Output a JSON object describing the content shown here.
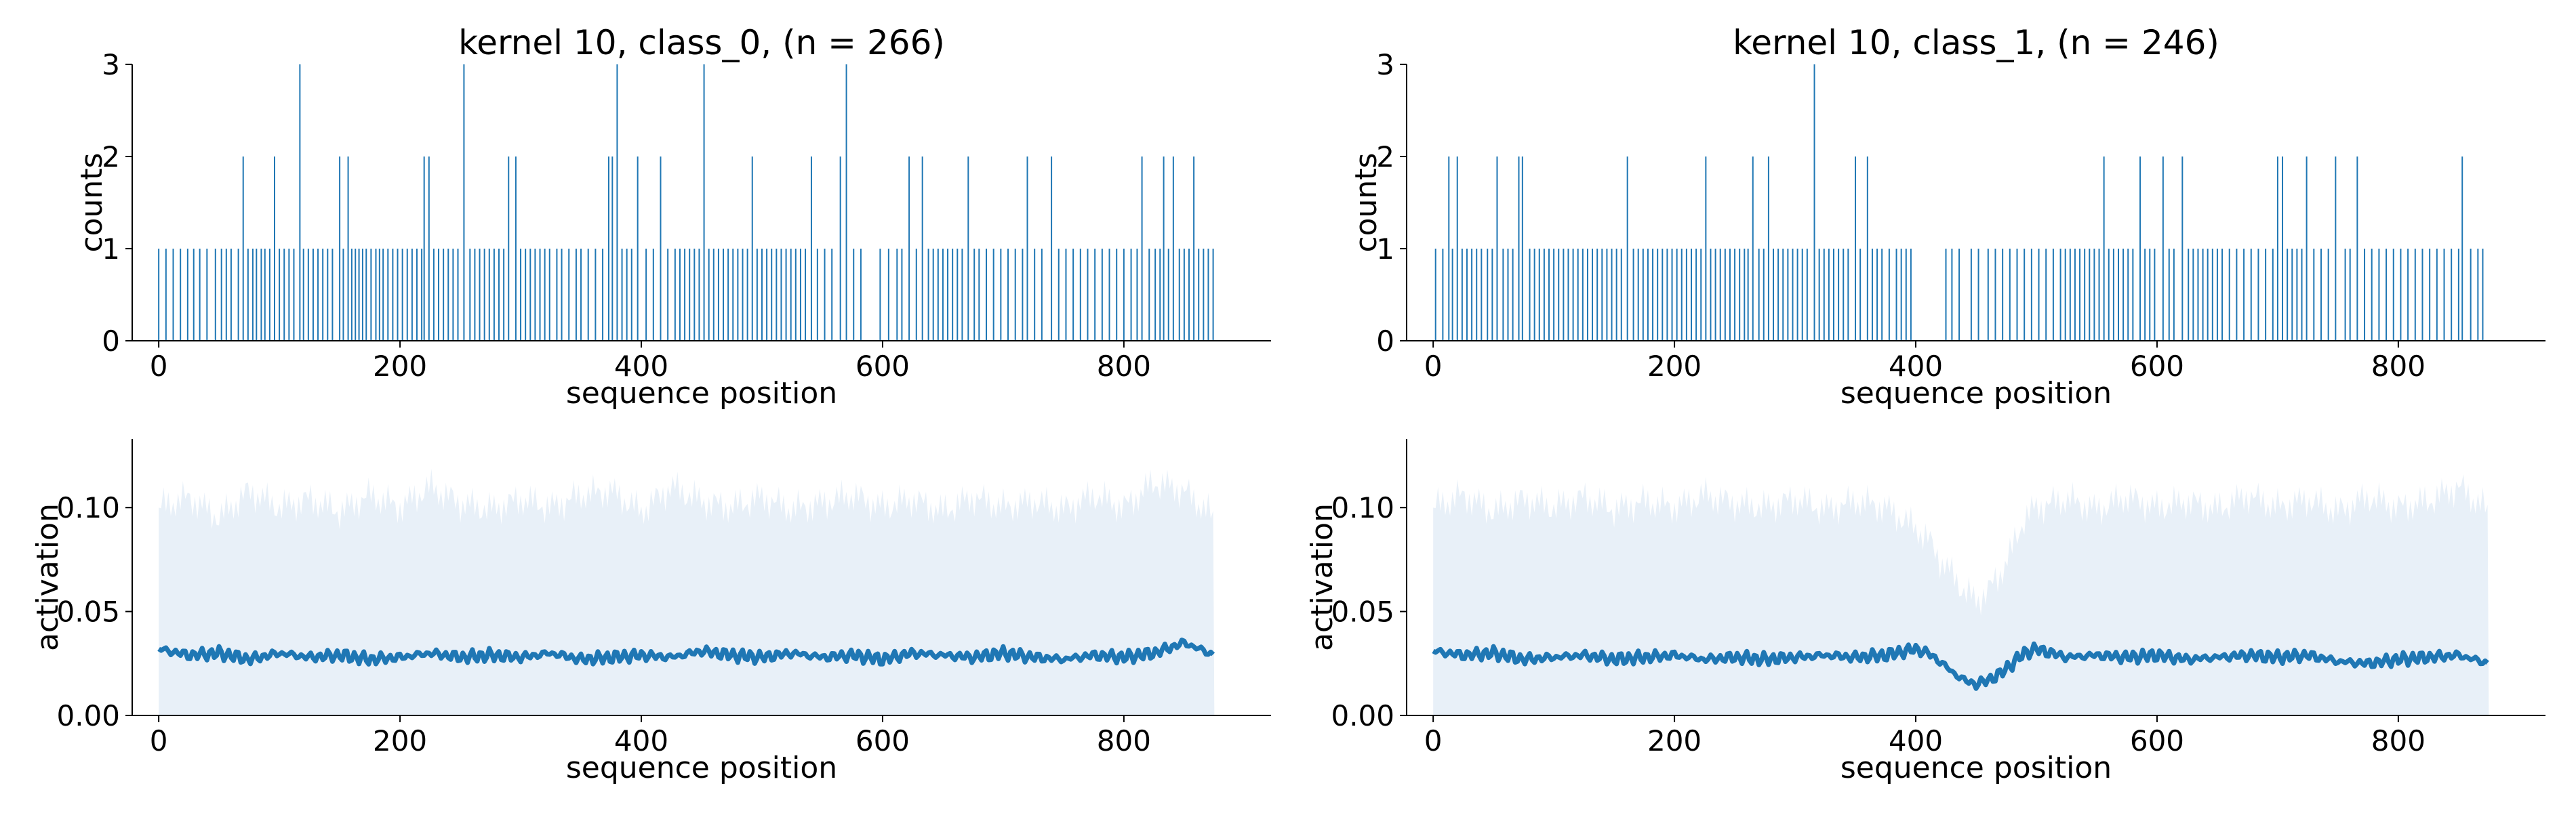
{
  "colors": {
    "line": "#1f77b4",
    "band": "#e8f0f8",
    "axis": "#000000",
    "background": "#ffffff"
  },
  "chart_data": [
    {
      "type": "bar",
      "title": "kernel 10, class_0, (n = 266)",
      "xlabel": "sequence position",
      "ylabel": "counts",
      "xlim": [
        -22,
        922
      ],
      "ylim": [
        0,
        3
      ],
      "xticks": [
        0,
        200,
        400,
        600,
        800
      ],
      "xtick_labels": [
        "0",
        "200",
        "400",
        "600",
        "800"
      ],
      "yticks": [
        0,
        1,
        2,
        3
      ],
      "ytick_labels": [
        "0",
        "1",
        "2",
        "3"
      ],
      "x_extent": [
        0,
        875
      ],
      "n": 266,
      "peaks": [
        {
          "x": 70,
          "count": 2
        },
        {
          "x": 96,
          "count": 2
        },
        {
          "x": 117,
          "count": 3
        },
        {
          "x": 150,
          "count": 2
        },
        {
          "x": 157,
          "count": 2
        },
        {
          "x": 220,
          "count": 2
        },
        {
          "x": 224,
          "count": 2
        },
        {
          "x": 253,
          "count": 3
        },
        {
          "x": 290,
          "count": 2
        },
        {
          "x": 296,
          "count": 2
        },
        {
          "x": 373,
          "count": 2
        },
        {
          "x": 376,
          "count": 2
        },
        {
          "x": 380,
          "count": 3
        },
        {
          "x": 397,
          "count": 2
        },
        {
          "x": 416,
          "count": 2
        },
        {
          "x": 452,
          "count": 3
        },
        {
          "x": 492,
          "count": 2
        },
        {
          "x": 541,
          "count": 2
        },
        {
          "x": 565,
          "count": 2
        },
        {
          "x": 570,
          "count": 3
        },
        {
          "x": 622,
          "count": 2
        },
        {
          "x": 633,
          "count": 2
        },
        {
          "x": 671,
          "count": 2
        },
        {
          "x": 720,
          "count": 2
        },
        {
          "x": 740,
          "count": 2
        },
        {
          "x": 815,
          "count": 2
        },
        {
          "x": 833,
          "count": 2
        },
        {
          "x": 841,
          "count": 2
        },
        {
          "x": 858,
          "count": 2
        }
      ],
      "ones": [
        0,
        6,
        12,
        18,
        24,
        29,
        34,
        40,
        47,
        52,
        56,
        60,
        66,
        74,
        78,
        81,
        85,
        88,
        92,
        100,
        104,
        108,
        112,
        120,
        124,
        128,
        132,
        136,
        140,
        144,
        153,
        160,
        163,
        166,
        169,
        172,
        176,
        180,
        183,
        186,
        190,
        194,
        198,
        202,
        206,
        210,
        214,
        218,
        228,
        232,
        236,
        240,
        244,
        248,
        258,
        262,
        266,
        270,
        274,
        278,
        282,
        286,
        300,
        304,
        308,
        312,
        316,
        320,
        324,
        330,
        334,
        340,
        346,
        350,
        356,
        362,
        368,
        384,
        388,
        392,
        404,
        410,
        422,
        428,
        432,
        436,
        440,
        444,
        448,
        456,
        460,
        464,
        468,
        472,
        476,
        480,
        484,
        488,
        496,
        500,
        504,
        508,
        512,
        516,
        520,
        524,
        528,
        532,
        536,
        546,
        552,
        558,
        576,
        582,
        598,
        605,
        612,
        616,
        628,
        638,
        642,
        646,
        650,
        654,
        658,
        662,
        666,
        676,
        680,
        686,
        692,
        698,
        704,
        710,
        716,
        726,
        732,
        746,
        752,
        758,
        764,
        770,
        776,
        782,
        788,
        794,
        800,
        806,
        811,
        821,
        826,
        830,
        837,
        846,
        850,
        854,
        862,
        866,
        870,
        874
      ]
    },
    {
      "type": "bar",
      "title": "kernel 10, class_1, (n = 246)",
      "xlabel": "sequence position",
      "ylabel": "counts",
      "xlim": [
        -22,
        922
      ],
      "ylim": [
        0,
        3
      ],
      "xticks": [
        0,
        200,
        400,
        600,
        800
      ],
      "xtick_labels": [
        "0",
        "200",
        "400",
        "600",
        "800"
      ],
      "yticks": [
        0,
        1,
        2,
        3
      ],
      "ytick_labels": [
        "0",
        "1",
        "2",
        "3"
      ],
      "x_extent": [
        0,
        875
      ],
      "n": 246,
      "peaks": [
        {
          "x": 13,
          "count": 2
        },
        {
          "x": 20,
          "count": 2
        },
        {
          "x": 53,
          "count": 2
        },
        {
          "x": 71,
          "count": 2
        },
        {
          "x": 74,
          "count": 2
        },
        {
          "x": 161,
          "count": 2
        },
        {
          "x": 226,
          "count": 2
        },
        {
          "x": 265,
          "count": 2
        },
        {
          "x": 278,
          "count": 2
        },
        {
          "x": 316,
          "count": 3
        },
        {
          "x": 350,
          "count": 2
        },
        {
          "x": 360,
          "count": 2
        },
        {
          "x": 556,
          "count": 2
        },
        {
          "x": 586,
          "count": 2
        },
        {
          "x": 605,
          "count": 2
        },
        {
          "x": 621,
          "count": 2
        },
        {
          "x": 700,
          "count": 2
        },
        {
          "x": 704,
          "count": 2
        },
        {
          "x": 724,
          "count": 2
        },
        {
          "x": 748,
          "count": 2
        },
        {
          "x": 766,
          "count": 2
        },
        {
          "x": 853,
          "count": 2
        }
      ],
      "ones": [
        2,
        8,
        16,
        24,
        28,
        32,
        36,
        40,
        45,
        49,
        58,
        62,
        66,
        80,
        84,
        88,
        92,
        96,
        100,
        104,
        108,
        112,
        116,
        120,
        124,
        128,
        132,
        136,
        140,
        144,
        148,
        152,
        156,
        166,
        170,
        174,
        178,
        182,
        186,
        190,
        194,
        198,
        202,
        206,
        210,
        214,
        218,
        222,
        230,
        234,
        238,
        242,
        246,
        250,
        254,
        258,
        261,
        270,
        274,
        282,
        286,
        290,
        294,
        298,
        302,
        306,
        310,
        320,
        324,
        328,
        332,
        336,
        340,
        344,
        354,
        364,
        368,
        372,
        378,
        384,
        388,
        392,
        396,
        425,
        430,
        436,
        446,
        452,
        460,
        466,
        472,
        478,
        484,
        490,
        496,
        502,
        508,
        514,
        520,
        524,
        528,
        532,
        536,
        540,
        544,
        548,
        552,
        560,
        564,
        568,
        572,
        576,
        580,
        590,
        594,
        598,
        610,
        614,
        626,
        630,
        634,
        638,
        642,
        646,
        650,
        654,
        660,
        666,
        672,
        678,
        684,
        690,
        696,
        708,
        712,
        716,
        720,
        730,
        736,
        742,
        756,
        760,
        772,
        778,
        784,
        790,
        796,
        802,
        808,
        814,
        820,
        826,
        832,
        838,
        844,
        850,
        860,
        866,
        870
      ]
    },
    {
      "type": "area",
      "xlabel": "sequence position",
      "ylabel": "activation",
      "xlim": [
        -22,
        922
      ],
      "ylim": [
        0,
        0.133
      ],
      "xticks": [
        0,
        200,
        400,
        600,
        800
      ],
      "xtick_labels": [
        "0",
        "200",
        "400",
        "600",
        "800"
      ],
      "yticks": [
        0,
        0.05,
        0.1
      ],
      "ytick_labels": [
        "0.00",
        "0.05",
        "0.10"
      ],
      "x_extent": [
        0,
        875
      ],
      "series": [
        {
          "kind": "mean",
          "x": [
            0,
            25,
            50,
            75,
            100,
            125,
            150,
            175,
            200,
            225,
            250,
            275,
            300,
            325,
            350,
            375,
            400,
            425,
            450,
            475,
            500,
            525,
            550,
            575,
            600,
            625,
            650,
            675,
            700,
            725,
            750,
            775,
            800,
            825,
            850,
            875
          ],
          "y": [
            0.032,
            0.029,
            0.03,
            0.027,
            0.03,
            0.028,
            0.029,
            0.027,
            0.028,
            0.03,
            0.028,
            0.029,
            0.028,
            0.03,
            0.027,
            0.028,
            0.029,
            0.028,
            0.031,
            0.029,
            0.028,
            0.03,
            0.028,
            0.029,
            0.027,
            0.03,
            0.029,
            0.028,
            0.03,
            0.028,
            0.027,
            0.029,
            0.028,
            0.03,
            0.035,
            0.029
          ]
        },
        {
          "kind": "band-upper",
          "x": [
            0,
            25,
            50,
            75,
            100,
            125,
            150,
            175,
            200,
            225,
            250,
            275,
            300,
            325,
            350,
            375,
            400,
            425,
            450,
            475,
            500,
            525,
            550,
            575,
            600,
            625,
            650,
            675,
            700,
            725,
            750,
            775,
            800,
            825,
            850,
            875
          ],
          "y": [
            0.1,
            0.105,
            0.095,
            0.108,
            0.1,
            0.104,
            0.098,
            0.106,
            0.1,
            0.11,
            0.102,
            0.099,
            0.104,
            0.1,
            0.106,
            0.108,
            0.098,
            0.11,
            0.103,
            0.1,
            0.105,
            0.099,
            0.102,
            0.106,
            0.1,
            0.104,
            0.098,
            0.105,
            0.1,
            0.103,
            0.099,
            0.106,
            0.1,
            0.112,
            0.108,
            0.095
          ]
        }
      ]
    },
    {
      "type": "area",
      "xlabel": "sequence position",
      "ylabel": "activation",
      "xlim": [
        -22,
        922
      ],
      "ylim": [
        0,
        0.133
      ],
      "xticks": [
        0,
        200,
        400,
        600,
        800
      ],
      "xtick_labels": [
        "0",
        "200",
        "400",
        "600",
        "800"
      ],
      "yticks": [
        0,
        0.05,
        0.1
      ],
      "ytick_labels": [
        "0.00",
        "0.05",
        "0.10"
      ],
      "x_extent": [
        0,
        875
      ],
      "series": [
        {
          "kind": "mean",
          "x": [
            0,
            25,
            50,
            75,
            100,
            125,
            150,
            175,
            200,
            225,
            250,
            275,
            300,
            325,
            350,
            375,
            400,
            410,
            420,
            430,
            440,
            450,
            460,
            470,
            480,
            490,
            500,
            525,
            550,
            575,
            600,
            625,
            650,
            675,
            700,
            725,
            750,
            775,
            800,
            825,
            850,
            875
          ],
          "y": [
            0.031,
            0.029,
            0.03,
            0.027,
            0.028,
            0.029,
            0.027,
            0.028,
            0.029,
            0.027,
            0.028,
            0.027,
            0.028,
            0.029,
            0.028,
            0.029,
            0.032,
            0.03,
            0.026,
            0.021,
            0.017,
            0.015,
            0.017,
            0.02,
            0.025,
            0.03,
            0.032,
            0.028,
            0.029,
            0.028,
            0.029,
            0.027,
            0.028,
            0.029,
            0.028,
            0.029,
            0.026,
            0.025,
            0.027,
            0.028,
            0.029,
            0.025
          ]
        },
        {
          "kind": "band-upper",
          "x": [
            0,
            25,
            50,
            75,
            100,
            125,
            150,
            175,
            200,
            225,
            250,
            275,
            300,
            325,
            350,
            375,
            400,
            410,
            420,
            430,
            440,
            450,
            460,
            470,
            480,
            490,
            500,
            525,
            550,
            575,
            600,
            625,
            650,
            675,
            700,
            725,
            750,
            775,
            800,
            825,
            850,
            875
          ],
          "y": [
            0.1,
            0.106,
            0.098,
            0.104,
            0.1,
            0.105,
            0.099,
            0.103,
            0.1,
            0.106,
            0.102,
            0.1,
            0.104,
            0.099,
            0.103,
            0.1,
            0.09,
            0.085,
            0.075,
            0.068,
            0.06,
            0.055,
            0.06,
            0.068,
            0.08,
            0.095,
            0.1,
            0.104,
            0.099,
            0.105,
            0.1,
            0.103,
            0.099,
            0.106,
            0.1,
            0.104,
            0.098,
            0.105,
            0.1,
            0.103,
            0.11,
            0.098
          ]
        }
      ]
    }
  ]
}
